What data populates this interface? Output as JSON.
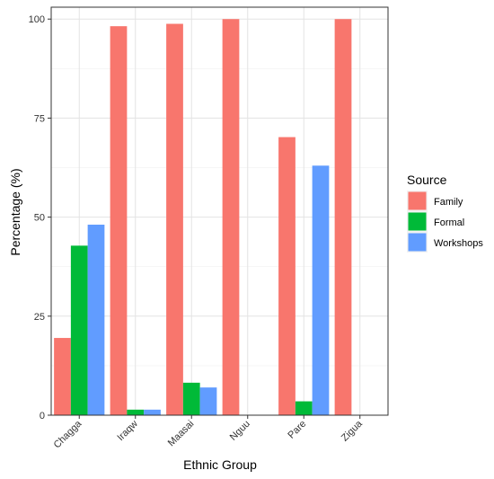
{
  "chart_data": {
    "type": "bar",
    "categories": [
      "Chagga",
      "Iraqw",
      "Maasai",
      "Nguu",
      "Pare",
      "Zigua"
    ],
    "series": [
      {
        "name": "Family",
        "color": "#F8766D",
        "values": [
          19.5,
          98.2,
          98.8,
          100,
          70.2,
          100
        ]
      },
      {
        "name": "Formal",
        "color": "#00BA38",
        "values": [
          42.8,
          1.4,
          8.2,
          null,
          3.5,
          null
        ]
      },
      {
        "name": "Workshops",
        "color": "#619CFF",
        "values": [
          48.1,
          1.4,
          7.0,
          null,
          63.0,
          null
        ]
      }
    ],
    "xlabel": "Ethnic Group",
    "ylabel": "Percentage (%)",
    "ylim": [
      0,
      103
    ],
    "yticks": [
      0,
      25,
      50,
      75,
      100
    ],
    "legend_title": "Source",
    "legend_position": "right",
    "grid": true
  }
}
